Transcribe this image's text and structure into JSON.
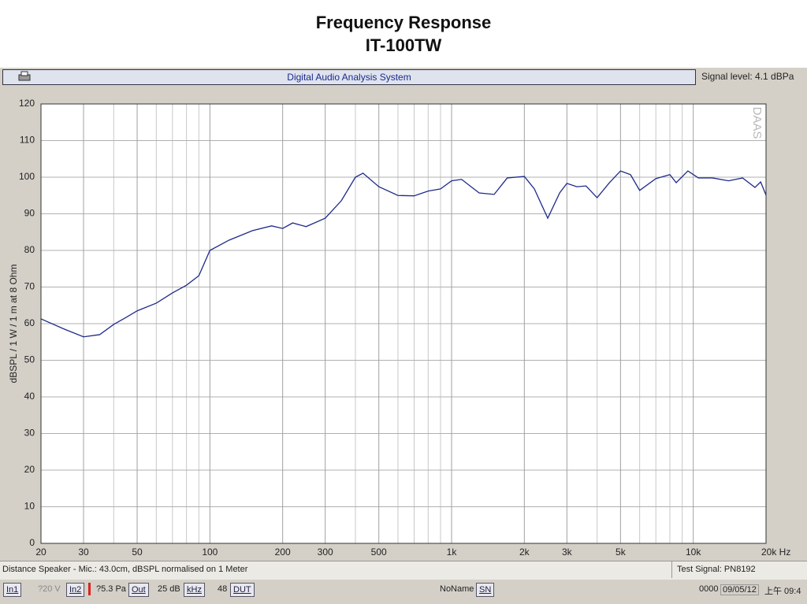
{
  "header": {
    "title": "Frequency Response",
    "subtitle": "IT-100TW"
  },
  "window": {
    "title": "Digital Audio Analysis System",
    "signal_level": "Signal level:  4.1 dBPa"
  },
  "chart_data": {
    "type": "line",
    "watermark": "DAAS",
    "ylabel": "dBSPL / 1 W / 1 m at 8 Ohm",
    "log_x": true,
    "grid": true,
    "xlim": [
      20,
      20000
    ],
    "ylim": [
      0,
      120
    ],
    "xticks": [
      20,
      30,
      50,
      100,
      200,
      300,
      500,
      {
        "value": 1000,
        "label": "1k"
      },
      {
        "value": 2000,
        "label": "2k"
      },
      {
        "value": 3000,
        "label": "3k"
      },
      {
        "value": 5000,
        "label": "5k"
      },
      {
        "value": 10000,
        "label": "10k"
      },
      {
        "value": 20000,
        "label": "20k Hz"
      }
    ],
    "xgrid_minor": [
      40,
      60,
      70,
      80,
      90,
      400,
      600,
      700,
      800,
      900,
      4000,
      6000,
      7000,
      8000,
      9000
    ],
    "yticks": [
      0,
      10,
      20,
      30,
      40,
      50,
      60,
      70,
      80,
      90,
      100,
      110,
      120
    ],
    "x": [
      20,
      25,
      30,
      35,
      40,
      45,
      50,
      60,
      70,
      80,
      90,
      100,
      120,
      150,
      180,
      200,
      220,
      250,
      300,
      350,
      400,
      430,
      500,
      600,
      700,
      800,
      900,
      1000,
      1100,
      1300,
      1500,
      1700,
      2000,
      2200,
      2500,
      2800,
      3000,
      3300,
      3600,
      4000,
      4500,
      5000,
      5500,
      6000,
      7000,
      8000,
      8500,
      9500,
      10500,
      12000,
      14000,
      16000,
      18000,
      19000,
      20000
    ],
    "series": [
      {
        "color": "#1f2a8a",
        "values": [
          61.3,
          58.5,
          56.4,
          57,
          59.8,
          61.7,
          63.5,
          65.6,
          68.4,
          70.5,
          73.1,
          80,
          82.8,
          85.4,
          86.7,
          86,
          87.5,
          86.5,
          88.8,
          93.6,
          100,
          101.1,
          97.4,
          95,
          94.9,
          96.2,
          96.8,
          99,
          99.4,
          95.7,
          95.3,
          99.8,
          100.2,
          96.8,
          88.8,
          95.7,
          98.3,
          97.4,
          97.6,
          94.4,
          98.5,
          101.7,
          100.7,
          96.4,
          99.6,
          100.7,
          98.5,
          101.7,
          99.8,
          99.8,
          99,
          99.8,
          97.2,
          98.7,
          95.1
        ]
      }
    ]
  },
  "status": {
    "left": "Distance Speaker - Mic.: 43.0cm, dBSPL normalised on 1 Meter",
    "right": "Test Signal: PN8192"
  },
  "toolbar": [
    "In1",
    "?20 V",
    "In2",
    "?5.3 Pa",
    "Out",
    "25 dB",
    "kHz",
    "48",
    "DUT",
    "NoName",
    "SN",
    "0000",
    "09/05/12",
    "上午 09:4"
  ]
}
